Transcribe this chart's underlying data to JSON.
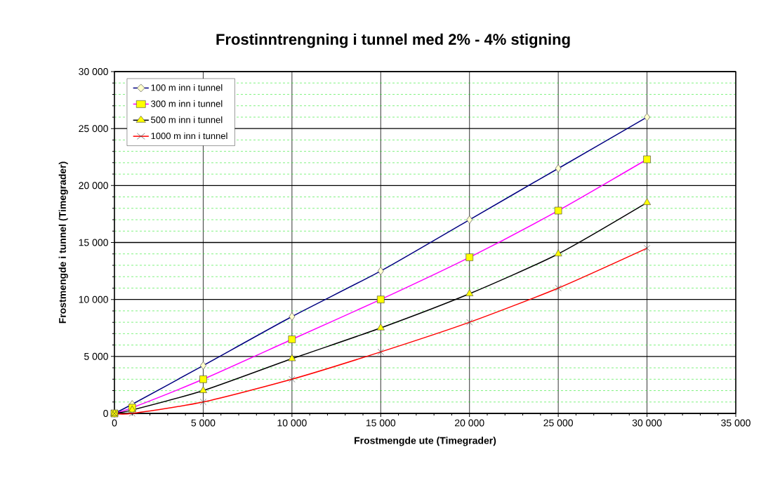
{
  "chart_data": {
    "type": "line",
    "title": "Frostinntrengning i tunnel med 2% - 4% stigning",
    "xlabel": "Frostmengde ute (Timegrader)",
    "ylabel": "Frostmengde i tunnel (Timegrader)",
    "x": [
      0,
      1000,
      5000,
      10000,
      15000,
      20000,
      25000,
      30000
    ],
    "series": [
      {
        "name": "100 m inn i tunnel",
        "color": "#000080",
        "marker": "diamond",
        "values": [
          0,
          800,
          4200,
          8500,
          12500,
          17000,
          21500,
          26000
        ]
      },
      {
        "name": "300 m inn i tunnel",
        "color": "#ff00ff",
        "marker": "square",
        "values": [
          0,
          500,
          3000,
          6500,
          10000,
          13700,
          17800,
          22300
        ]
      },
      {
        "name": "500 m inn i tunnel",
        "color": "#000000",
        "marker": "triangle",
        "values": [
          0,
          300,
          2000,
          4800,
          7500,
          10500,
          14000,
          18500
        ]
      },
      {
        "name": "1000 m inn i tunnel",
        "color": "#ff0000",
        "marker": "cross",
        "values": [
          0,
          0,
          1000,
          3000,
          5400,
          8000,
          11000,
          14500
        ]
      }
    ],
    "xlim": [
      0,
      35000
    ],
    "ylim": [
      0,
      30000
    ],
    "xticks": [
      0,
      {
        "value": 1000,
        "label": null
      },
      {
        "value": 2000,
        "label": null
      },
      {
        "value": 3000,
        "label": null
      },
      {
        "value": 4000,
        "label": null
      },
      {
        "value": 5000,
        "label": "5 000"
      },
      {
        "value": 6000,
        "label": null
      },
      {
        "value": 7000,
        "label": null
      },
      {
        "value": 8000,
        "label": null
      },
      {
        "value": 9000,
        "label": null
      },
      {
        "value": 10000,
        "label": "10 000"
      },
      {
        "value": 11000,
        "label": null
      },
      {
        "value": 12000,
        "label": null
      },
      {
        "value": 13000,
        "label": null
      },
      {
        "value": 14000,
        "label": null
      },
      {
        "value": 15000,
        "label": "15 000"
      },
      {
        "value": 16000,
        "label": null
      },
      {
        "value": 17000,
        "label": null
      },
      {
        "value": 18000,
        "label": null
      },
      {
        "value": 19000,
        "label": null
      },
      {
        "value": 20000,
        "label": "20 000"
      },
      {
        "value": 21000,
        "label": null
      },
      {
        "value": 22000,
        "label": null
      },
      {
        "value": 23000,
        "label": null
      },
      {
        "value": 24000,
        "label": null
      },
      {
        "value": 25000,
        "label": "25 000"
      },
      {
        "value": 26000,
        "label": null
      },
      {
        "value": 27000,
        "label": null
      },
      {
        "value": 28000,
        "label": null
      },
      {
        "value": 29000,
        "label": null
      },
      {
        "value": 30000,
        "label": "30 000"
      },
      {
        "value": 31000,
        "label": null
      },
      {
        "value": 32000,
        "label": null
      },
      {
        "value": 33000,
        "label": null
      },
      {
        "value": 34000,
        "label": null
      },
      {
        "value": 35000,
        "label": "35 000"
      }
    ],
    "yticks": [
      0,
      {
        "value": 1000,
        "label": null
      },
      {
        "value": 2000,
        "label": null
      },
      {
        "value": 3000,
        "label": null
      },
      {
        "value": 4000,
        "label": null
      },
      {
        "value": 5000,
        "label": "5 000"
      },
      {
        "value": 6000,
        "label": null
      },
      {
        "value": 7000,
        "label": null
      },
      {
        "value": 8000,
        "label": null
      },
      {
        "value": 9000,
        "label": null
      },
      {
        "value": 10000,
        "label": "10 000"
      },
      {
        "value": 11000,
        "label": null
      },
      {
        "value": 12000,
        "label": null
      },
      {
        "value": 13000,
        "label": null
      },
      {
        "value": 14000,
        "label": null
      },
      {
        "value": 15000,
        "label": "15 000"
      },
      {
        "value": 16000,
        "label": null
      },
      {
        "value": 17000,
        "label": null
      },
      {
        "value": 18000,
        "label": null
      },
      {
        "value": 19000,
        "label": null
      },
      {
        "value": 20000,
        "label": "20 000"
      },
      {
        "value": 21000,
        "label": null
      },
      {
        "value": 22000,
        "label": null
      },
      {
        "value": 23000,
        "label": null
      },
      {
        "value": 24000,
        "label": null
      },
      {
        "value": 25000,
        "label": "25 000"
      },
      {
        "value": 26000,
        "label": null
      },
      {
        "value": 27000,
        "label": null
      },
      {
        "value": 28000,
        "label": null
      },
      {
        "value": 29000,
        "label": null
      },
      {
        "value": 30000,
        "label": "30 000"
      }
    ],
    "grid": true,
    "legend": "top left",
    "line_style": "solid"
  }
}
